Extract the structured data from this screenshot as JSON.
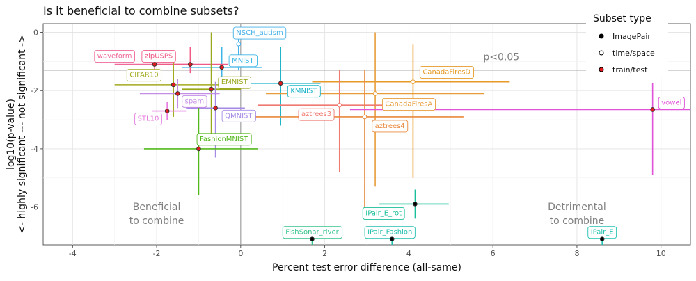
{
  "chart_data": {
    "type": "scatter",
    "title": "Is it beneficial to combine subsets?",
    "xlabel": "Percent test error difference (all-same)",
    "ylabel_lines": [
      "log10(p-value)",
      "<- highly significant --- not significant ->"
    ],
    "xlim": [
      -4.7,
      10.7
    ],
    "ylim": [
      -7.3,
      0.3
    ],
    "x_ticks": [
      -4,
      -2,
      0,
      2,
      4,
      6,
      8,
      10
    ],
    "y_ticks": [
      0,
      -2,
      -4,
      -6
    ],
    "grid": true,
    "significance_line": {
      "y": -1.30103,
      "label": "p<0.05",
      "label_x": 6.2,
      "label_y": -0.95
    },
    "annotations": [
      {
        "lines": [
          "Beneficial",
          "to combine"
        ],
        "x": -2.0,
        "y": -6.2
      },
      {
        "lines": [
          "Detrimental",
          "to combine"
        ],
        "x": 8.0,
        "y": -6.2
      }
    ],
    "legend": {
      "title": "Subset type",
      "position": "top-right",
      "entries": [
        {
          "label": "ImagePair",
          "fill": "#000000",
          "stroke": "#000000"
        },
        {
          "label": "time/space",
          "fill": "#ffffff",
          "stroke": "#000000"
        },
        {
          "label": "train/test",
          "fill": "#e41a1c",
          "stroke": "#000000"
        }
      ]
    },
    "points": [
      {
        "name": "NSCH_autism",
        "x": -0.05,
        "y": -0.4,
        "xlo": -0.05,
        "xhi": -0.05,
        "ylo": -1.3,
        "yhi": 0.05,
        "type": "time/space",
        "color": "#45b1e8",
        "label_x": 0.45,
        "label_y": 0.0
      },
      {
        "name": "MNIST",
        "x": -0.45,
        "y": -1.2,
        "xlo": -1.4,
        "xhi": 0.5,
        "ylo": -1.6,
        "yhi": -0.5,
        "type": "train/test",
        "color": "#3ab5e6",
        "label_x": 0.05,
        "label_y": -0.95
      },
      {
        "name": "KMNIST",
        "x": 0.95,
        "y": -1.75,
        "xlo": 0.0,
        "xhi": 1.9,
        "ylo": -3.2,
        "yhi": -0.5,
        "type": "train/test",
        "color": "#1fb5c9",
        "label_x": 1.5,
        "label_y": -2.0
      },
      {
        "name": "waveform",
        "x": -2.05,
        "y": -1.1,
        "xlo": -3.0,
        "xhi": -1.1,
        "ylo": -1.4,
        "yhi": -0.8,
        "type": "train/test",
        "color": "#f0689a",
        "label_x": -3.0,
        "label_y": -0.8
      },
      {
        "name": "zipUSPS",
        "x": -1.2,
        "y": -1.1,
        "xlo": -2.0,
        "xhi": -0.3,
        "ylo": -1.4,
        "yhi": -0.5,
        "type": "train/test",
        "color": "#ef5b86",
        "label_x": -1.95,
        "label_y": -0.8
      },
      {
        "name": "CIFAR10",
        "x": -1.6,
        "y": -1.8,
        "xlo": -3.0,
        "xhi": -0.2,
        "ylo": -2.9,
        "yhi": -1.0,
        "type": "train/test",
        "color": "#a3aa1e",
        "label_x": -2.3,
        "label_y": -1.45
      },
      {
        "name": "EMNIST",
        "x": -0.7,
        "y": -1.95,
        "xlo": -1.4,
        "xhi": 0.0,
        "ylo": -3.6,
        "yhi": 0.0,
        "type": "train/test",
        "color": "#9aa81c",
        "label_x": -0.15,
        "label_y": -1.7
      },
      {
        "name": "spam",
        "x": -1.5,
        "y": -2.1,
        "xlo": -2.4,
        "xhi": -0.5,
        "ylo": -2.6,
        "yhi": -1.6,
        "type": "train/test",
        "color": "#c48ee6",
        "label_x": -1.1,
        "label_y": -2.35
      },
      {
        "name": "STL10",
        "x": -1.75,
        "y": -2.7,
        "xlo": -2.1,
        "xhi": -1.3,
        "ylo": -3.0,
        "yhi": -2.4,
        "type": "train/test",
        "color": "#e67ae0",
        "label_x": -2.2,
        "label_y": -2.95
      },
      {
        "name": "QMNIST",
        "x": -0.6,
        "y": -2.6,
        "xlo": -1.3,
        "xhi": 0.1,
        "ylo": -4.3,
        "yhi": -1.7,
        "type": "train/test",
        "color": "#a58ae6",
        "label_x": -0.05,
        "label_y": -2.85
      },
      {
        "name": "FashionMNIST",
        "x": -1.0,
        "y": -4.0,
        "xlo": -2.3,
        "xhi": 0.4,
        "ylo": -5.6,
        "yhi": -2.4,
        "type": "train/test",
        "color": "#52b81c",
        "label_x": -0.4,
        "label_y": -3.65
      },
      {
        "name": "CanadaFiresD",
        "x": 4.1,
        "y": -1.7,
        "xlo": 1.7,
        "xhi": 6.4,
        "ylo": -5.0,
        "yhi": -0.4,
        "type": "time/space",
        "color": "#e69a28",
        "label_x": 4.9,
        "label_y": -1.35
      },
      {
        "name": "CanadaFiresA",
        "x": 3.2,
        "y": -2.1,
        "xlo": 0.6,
        "xhi": 5.8,
        "ylo": -5.3,
        "yhi": 0.0,
        "type": "time/space",
        "color": "#e89c3a",
        "label_x": 4.0,
        "label_y": -2.45
      },
      {
        "name": "aztrees3",
        "x": 2.35,
        "y": -2.5,
        "xlo": 0.4,
        "xhi": 4.3,
        "ylo": -4.8,
        "yhi": -1.3,
        "type": "time/space",
        "color": "#f07a72",
        "label_x": 1.8,
        "label_y": -2.8
      },
      {
        "name": "aztrees4",
        "x": 2.95,
        "y": -2.9,
        "xlo": 0.05,
        "xhi": 5.3,
        "ylo": -6.3,
        "yhi": -1.3,
        "type": "time/space",
        "color": "#e8883c",
        "label_x": 3.55,
        "label_y": -3.2
      },
      {
        "name": "vowel",
        "x": 9.8,
        "y": -2.65,
        "xlo": 2.6,
        "xhi": 10.7,
        "ylo": -4.9,
        "yhi": -1.75,
        "type": "train/test",
        "color": "#e052d8",
        "label_x": 10.25,
        "label_y": -2.4
      },
      {
        "name": "IPair_E_rot",
        "x": 4.15,
        "y": -5.9,
        "xlo": 3.3,
        "xhi": 4.95,
        "ylo": -6.4,
        "yhi": -5.4,
        "type": "ImagePair",
        "color": "#1abf9a",
        "label_x": 3.4,
        "label_y": -6.2
      },
      {
        "name": "FishSonar_river",
        "x": 1.7,
        "y": -7.1,
        "xlo": 1.7,
        "xhi": 1.7,
        "ylo": -7.3,
        "yhi": -6.9,
        "type": "ImagePair",
        "color": "#34c48a",
        "label_x": 1.7,
        "label_y": -6.85
      },
      {
        "name": "IPair_Fashion",
        "x": 3.6,
        "y": -7.1,
        "xlo": 3.6,
        "xhi": 3.6,
        "ylo": -7.3,
        "yhi": -6.9,
        "type": "ImagePair",
        "color": "#20bfae",
        "label_x": 3.55,
        "label_y": -6.85
      },
      {
        "name": "IPair_E",
        "x": 8.6,
        "y": -7.1,
        "xlo": 8.6,
        "xhi": 8.6,
        "ylo": -7.3,
        "yhi": -6.9,
        "type": "ImagePair",
        "color": "#1ec2b0",
        "label_x": 8.6,
        "label_y": -6.85
      }
    ]
  }
}
